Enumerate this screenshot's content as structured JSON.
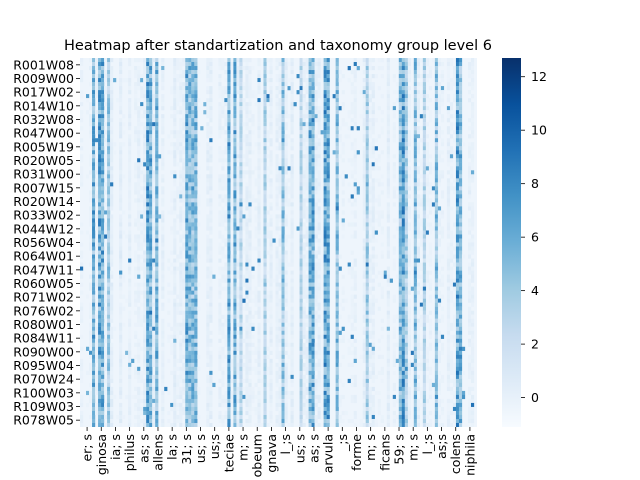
{
  "chart_data": {
    "type": "heatmap",
    "title": "Heatmap after standartization and taxonomy group level 6",
    "y_tick_labels": [
      "R001W08",
      "R009W00",
      "R017W02",
      "R014W10",
      "R032W08",
      "R047W00",
      "R005W19",
      "R020W05",
      "R031W00",
      "R007W15",
      "R020W14",
      "R033W02",
      "R044W12",
      "R056W04",
      "R064W01",
      "R047W11",
      "R060W05",
      "R071W02",
      "R076W02",
      "R080W01",
      "R084W11",
      "R090W00",
      "R095W04",
      "R070W24",
      "R100W03",
      "R109W03",
      "R078W05"
    ],
    "x_tick_labels": [
      "er; s",
      "ginosa",
      "ia; s",
      "philus",
      "as; s",
      "allens",
      "la; s",
      "31; s",
      "us; s",
      "us;s",
      "teciae",
      "m; s",
      "obeum",
      "gnava",
      "l_;s",
      "us; s",
      "as; s",
      "arvula",
      "_;s",
      "forme",
      "m; s",
      "ficans",
      "59; s",
      "m; s",
      "l_;s",
      "as;s",
      "colens",
      "niphila"
    ],
    "colorbar": {
      "ticks": [
        0,
        2,
        4,
        6,
        8,
        10,
        12
      ],
      "vmin": -1.1,
      "vmax": 12.7,
      "colormap": "Blues"
    },
    "grid": false
  },
  "colors": {
    "low": "#f7fbff",
    "mid": "#6baed6",
    "high": "#08306b"
  }
}
